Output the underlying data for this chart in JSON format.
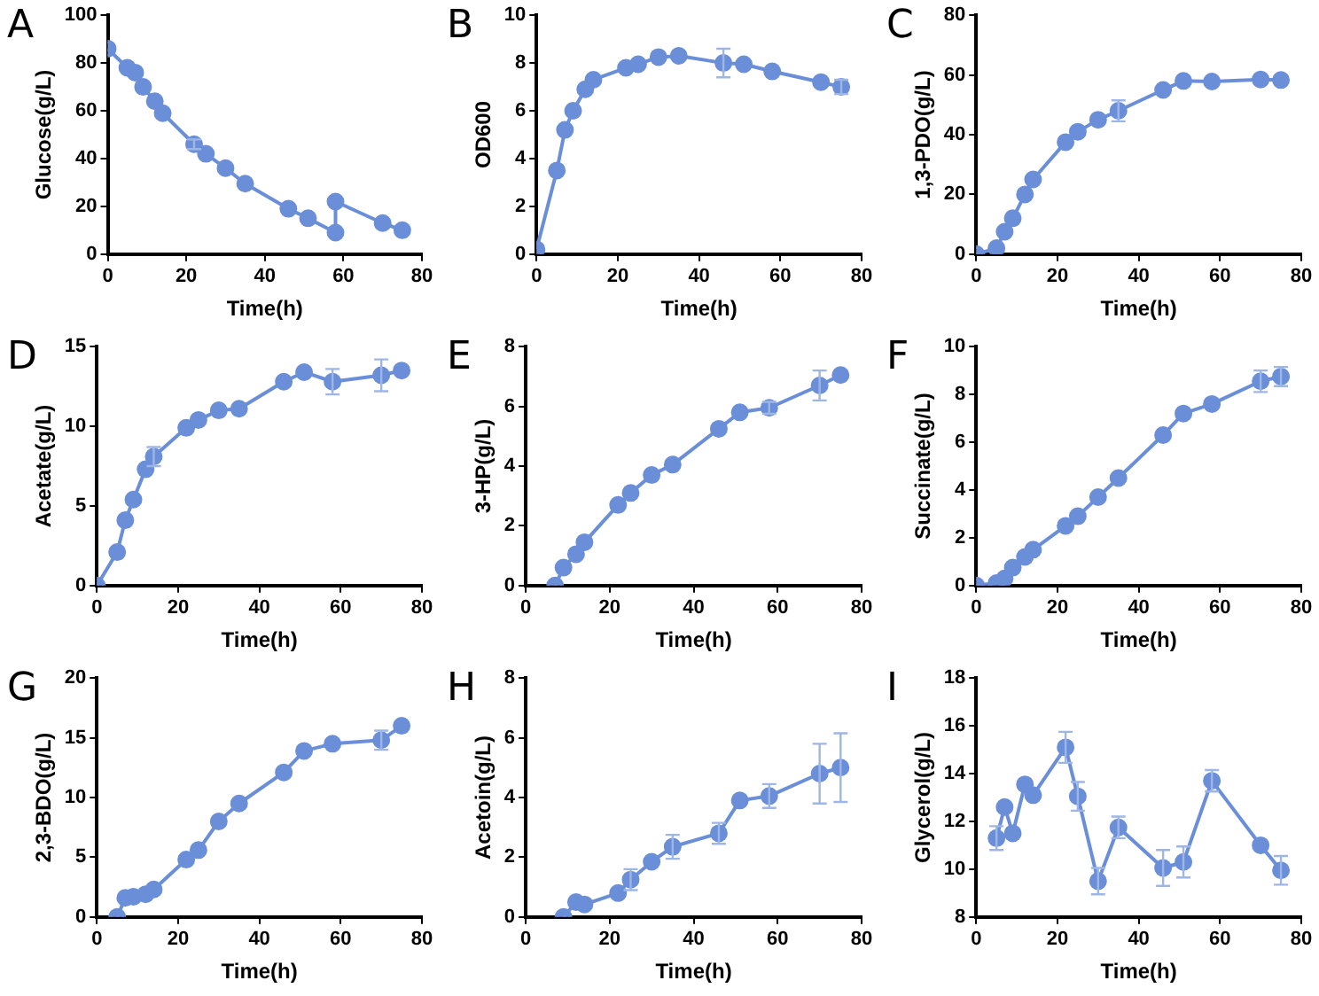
{
  "chart_data": [
    {
      "type": "line",
      "title": "A",
      "xlabel": "Time(h)",
      "ylabel": "Glucose(g/L)",
      "xlim": [
        0,
        80
      ],
      "xticks": [
        0,
        20,
        40,
        60,
        80
      ],
      "ylim": [
        0,
        100
      ],
      "yticks": [
        0,
        20,
        40,
        60,
        80,
        100
      ],
      "grid": false,
      "legend": false,
      "marker": "circle",
      "line_style": "solid",
      "series": [
        {
          "color": "#6a8fd8",
          "x": [
            0,
            5,
            7,
            9,
            12,
            14,
            22,
            25,
            30,
            35,
            46,
            51,
            58,
            58,
            70,
            75
          ],
          "values": [
            86,
            78,
            76,
            70,
            64,
            59,
            46,
            42,
            36,
            29.5,
            19,
            15,
            9,
            22,
            13,
            10
          ],
          "errors": [
            null,
            null,
            null,
            null,
            null,
            null,
            2,
            null,
            null,
            null,
            null,
            null,
            null,
            null,
            null,
            null
          ]
        }
      ]
    },
    {
      "type": "line",
      "title": "B",
      "xlabel": "Time(h)",
      "ylabel": "OD600",
      "xlim": [
        0,
        80
      ],
      "xticks": [
        0,
        20,
        40,
        60,
        80
      ],
      "ylim": [
        0,
        10
      ],
      "yticks": [
        0,
        2,
        4,
        6,
        8,
        10
      ],
      "grid": false,
      "legend": false,
      "marker": "circle",
      "line_style": "solid",
      "series": [
        {
          "color": "#6a8fd8",
          "x": [
            0,
            5,
            7,
            9,
            12,
            14,
            22,
            25,
            30,
            35,
            46,
            51,
            58,
            70,
            75
          ],
          "values": [
            0.2,
            3.5,
            5.2,
            6.0,
            6.9,
            7.3,
            7.8,
            7.95,
            8.25,
            8.3,
            8.0,
            7.95,
            7.65,
            7.2,
            7.0
          ],
          "errors": [
            null,
            null,
            null,
            null,
            null,
            null,
            null,
            null,
            null,
            null,
            0.6,
            null,
            null,
            null,
            0.3
          ]
        }
      ]
    },
    {
      "type": "line",
      "title": "C",
      "xlabel": "Time(h)",
      "ylabel": "1,3-PDO(g/L)",
      "xlim": [
        0,
        80
      ],
      "xticks": [
        0,
        20,
        40,
        60,
        80
      ],
      "ylim": [
        0,
        80
      ],
      "yticks": [
        0,
        20,
        40,
        60,
        80
      ],
      "grid": false,
      "legend": false,
      "marker": "circle",
      "line_style": "solid",
      "series": [
        {
          "color": "#6a8fd8",
          "x": [
            0,
            5,
            7,
            9,
            12,
            14,
            22,
            25,
            30,
            35,
            46,
            51,
            58,
            70,
            75
          ],
          "values": [
            0,
            2,
            7.5,
            12,
            20,
            25,
            37.5,
            41,
            45,
            48,
            55,
            58,
            57.8,
            58.5,
            58.3
          ],
          "errors": [
            null,
            null,
            null,
            null,
            null,
            null,
            null,
            null,
            null,
            3.5,
            null,
            null,
            null,
            null,
            null
          ]
        }
      ]
    },
    {
      "type": "line",
      "title": "D",
      "xlabel": "Time(h)",
      "ylabel": "Acetate(g/L)",
      "xlim": [
        0,
        80
      ],
      "xticks": [
        0,
        20,
        40,
        60,
        80
      ],
      "ylim": [
        0,
        15
      ],
      "yticks": [
        0,
        5,
        10,
        15
      ],
      "grid": false,
      "legend": false,
      "marker": "circle",
      "line_style": "solid",
      "series": [
        {
          "color": "#6a8fd8",
          "x": [
            0,
            5,
            7,
            9,
            12,
            14,
            22,
            25,
            30,
            35,
            46,
            51,
            58,
            70,
            75
          ],
          "values": [
            0,
            2.1,
            4.1,
            5.4,
            7.3,
            8.1,
            9.9,
            10.4,
            11.0,
            11.1,
            12.8,
            13.4,
            12.8,
            13.2,
            13.5
          ],
          "errors": [
            null,
            null,
            null,
            null,
            null,
            0.6,
            null,
            null,
            null,
            null,
            null,
            null,
            0.8,
            1.0,
            null
          ]
        }
      ]
    },
    {
      "type": "line",
      "title": "E",
      "xlabel": "Time(h)",
      "ylabel": "3-HP(g/L)",
      "xlim": [
        0,
        80
      ],
      "xticks": [
        0,
        20,
        40,
        60,
        80
      ],
      "ylim": [
        0,
        8
      ],
      "yticks": [
        0,
        2,
        4,
        6,
        8
      ],
      "grid": false,
      "legend": false,
      "marker": "circle",
      "line_style": "solid",
      "series": [
        {
          "color": "#6a8fd8",
          "x": [
            7,
            9,
            12,
            14,
            22,
            25,
            30,
            35,
            46,
            51,
            58,
            70,
            75
          ],
          "values": [
            0,
            0.6,
            1.05,
            1.45,
            2.7,
            3.1,
            3.7,
            4.05,
            5.25,
            5.8,
            5.95,
            6.7,
            7.05
          ],
          "errors": [
            null,
            null,
            null,
            null,
            null,
            null,
            null,
            null,
            null,
            null,
            0.2,
            0.5,
            null
          ]
        }
      ]
    },
    {
      "type": "line",
      "title": "F",
      "xlabel": "Time(h)",
      "ylabel": "Succinate(g/L)",
      "xlim": [
        0,
        80
      ],
      "xticks": [
        0,
        20,
        40,
        60,
        80
      ],
      "ylim": [
        0,
        10
      ],
      "yticks": [
        0,
        2,
        4,
        6,
        8,
        10
      ],
      "grid": false,
      "legend": false,
      "marker": "circle",
      "line_style": "solid",
      "series": [
        {
          "color": "#6a8fd8",
          "x": [
            0,
            5,
            7,
            9,
            12,
            14,
            22,
            25,
            30,
            35,
            46,
            51,
            58,
            70,
            75
          ],
          "values": [
            0,
            0.1,
            0.3,
            0.75,
            1.2,
            1.5,
            2.5,
            2.9,
            3.7,
            4.5,
            6.3,
            7.2,
            7.6,
            8.55,
            8.75
          ],
          "errors": [
            null,
            null,
            null,
            null,
            null,
            null,
            null,
            null,
            null,
            null,
            null,
            null,
            null,
            0.45,
            0.4
          ]
        }
      ]
    },
    {
      "type": "line",
      "title": "G",
      "xlabel": "Time(h)",
      "ylabel": "2,3-BDO(g/L)",
      "xlim": [
        0,
        80
      ],
      "xticks": [
        0,
        20,
        40,
        60,
        80
      ],
      "ylim": [
        0,
        20
      ],
      "yticks": [
        0,
        5,
        10,
        15,
        20
      ],
      "grid": false,
      "legend": false,
      "marker": "circle",
      "line_style": "solid",
      "series": [
        {
          "color": "#6a8fd8",
          "x": [
            5,
            7,
            9,
            12,
            14,
            22,
            25,
            30,
            35,
            46,
            51,
            58,
            70,
            75
          ],
          "values": [
            0,
            1.6,
            1.7,
            1.9,
            2.3,
            4.8,
            5.6,
            8,
            9.5,
            12.1,
            13.9,
            14.5,
            14.8,
            16
          ],
          "errors": [
            null,
            null,
            null,
            null,
            null,
            null,
            null,
            null,
            null,
            null,
            null,
            null,
            0.8,
            null
          ]
        }
      ]
    },
    {
      "type": "line",
      "title": "H",
      "xlabel": "Time(h)",
      "ylabel": "Acetoin(g/L)",
      "xlim": [
        0,
        80
      ],
      "xticks": [
        0,
        20,
        40,
        60,
        80
      ],
      "ylim": [
        0,
        8
      ],
      "yticks": [
        0,
        2,
        4,
        6,
        8
      ],
      "grid": false,
      "legend": false,
      "marker": "circle",
      "line_style": "solid",
      "series": [
        {
          "color": "#6a8fd8",
          "x": [
            9,
            12,
            14,
            22,
            25,
            30,
            35,
            46,
            51,
            58,
            70,
            75
          ],
          "values": [
            0,
            0.5,
            0.42,
            0.8,
            1.25,
            1.85,
            2.35,
            2.8,
            3.9,
            4.05,
            4.8,
            5.0
          ],
          "errors": [
            null,
            null,
            null,
            null,
            0.35,
            null,
            0.4,
            0.35,
            null,
            0.4,
            1.0,
            1.15
          ]
        }
      ]
    },
    {
      "type": "line",
      "title": "I",
      "xlabel": "Time(h)",
      "ylabel": "Glycerol(g/L)",
      "xlim": [
        0,
        80
      ],
      "xticks": [
        0,
        20,
        40,
        60,
        80
      ],
      "ylim": [
        8,
        18
      ],
      "yticks": [
        8,
        10,
        12,
        14,
        16,
        18
      ],
      "grid": false,
      "legend": false,
      "marker": "circle",
      "line_style": "solid",
      "series": [
        {
          "color": "#6a8fd8",
          "x": [
            5,
            7,
            9,
            12,
            14,
            22,
            25,
            30,
            35,
            46,
            51,
            58,
            70,
            75
          ],
          "values": [
            11.3,
            12.6,
            11.5,
            13.55,
            13.1,
            15.1,
            13.05,
            9.5,
            11.75,
            10.05,
            10.3,
            13.7,
            11.0,
            9.95
          ],
          "errors": [
            0.5,
            null,
            null,
            null,
            null,
            0.65,
            0.6,
            0.55,
            0.45,
            0.75,
            0.65,
            0.45,
            null,
            0.6
          ]
        }
      ]
    }
  ]
}
